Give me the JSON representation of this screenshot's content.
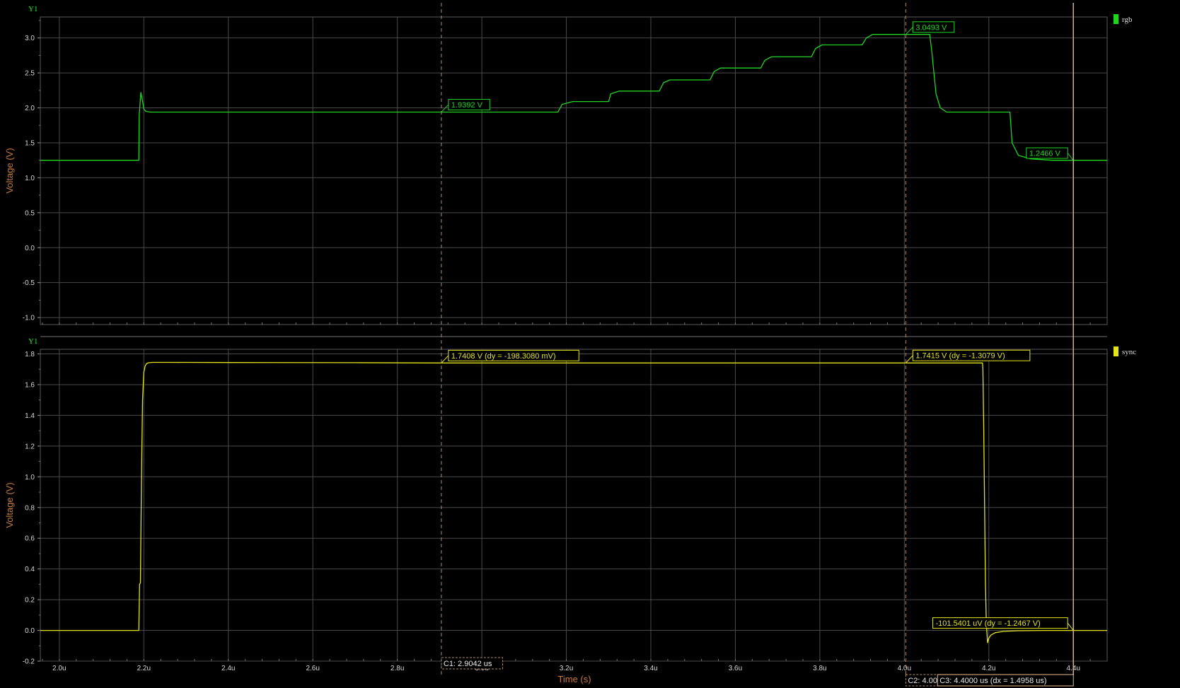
{
  "colors": {
    "background": "#000000",
    "grid": "#4a4a4a",
    "rgb_trace": "#22d422",
    "sync_trace": "#e3e31c",
    "cursor_dashed": "#b08b6a",
    "cursor_solid": "#e8b98c",
    "axis_label": "#c87a3c",
    "tag": "#27e827"
  },
  "chart_data": [
    {
      "type": "line",
      "panel_tag": "Y1",
      "ylabel": "Voltage (V)",
      "xlabel": "",
      "xlim": [
        1.955,
        4.48
      ],
      "ylim": [
        -1.1,
        3.3
      ],
      "yticks": [
        -1.0,
        -0.5,
        0.0,
        0.5,
        1.0,
        1.5,
        2.0,
        2.5,
        3.0
      ],
      "ytick_labels": [
        "-1.0",
        "-0.5",
        "0.0",
        "0.5",
        "1.0",
        "1.5",
        "2.0",
        "2.5",
        "3.0"
      ],
      "grid": true,
      "legend_position": "right",
      "series": [
        {
          "name": "rgb",
          "color": "#22d422",
          "x": [
            1.955,
            2.188,
            2.189,
            2.193,
            2.197,
            2.2,
            2.205,
            2.215,
            2.3,
            3.18,
            3.19,
            3.215,
            3.3,
            3.305,
            3.325,
            3.42,
            3.43,
            3.445,
            3.54,
            3.55,
            3.565,
            3.66,
            3.67,
            3.685,
            3.78,
            3.79,
            3.805,
            3.9,
            3.91,
            3.925,
            4.06,
            4.065,
            4.075,
            4.085,
            4.1,
            4.25,
            4.255,
            4.27,
            4.3,
            4.35,
            4.48
          ],
          "y": [
            1.25,
            1.25,
            1.9,
            2.22,
            2.1,
            1.98,
            1.95,
            1.94,
            1.94,
            1.94,
            2.05,
            2.09,
            2.09,
            2.2,
            2.24,
            2.24,
            2.36,
            2.4,
            2.4,
            2.52,
            2.57,
            2.57,
            2.68,
            2.73,
            2.73,
            2.85,
            2.9,
            2.9,
            3.0,
            3.05,
            3.05,
            2.8,
            2.2,
            2.0,
            1.94,
            1.94,
            1.5,
            1.32,
            1.27,
            1.25,
            1.25
          ]
        }
      ],
      "markers": [
        {
          "label": "1.9392 V",
          "x": 2.9042,
          "y": 1.9392
        },
        {
          "label": "3.0493 V",
          "x": 4.0034,
          "y": 3.0493
        },
        {
          "label": "1.2466 V",
          "x": 4.4,
          "y": 1.2466
        }
      ]
    },
    {
      "type": "line",
      "panel_tag": "Y1",
      "ylabel": "Voltage (V)",
      "xlabel": "Time (s)",
      "xlim": [
        1.955,
        4.48
      ],
      "ylim": [
        -0.2,
        1.83
      ],
      "xticks": [
        2.0,
        2.2,
        2.4,
        2.6,
        2.8,
        3.0,
        3.2,
        3.4,
        3.6,
        3.8,
        4.0,
        4.2,
        4.4
      ],
      "xtick_labels": [
        "2.0u",
        "2.2u",
        "2.4u",
        "2.6u",
        "2.8u",
        "3.0u",
        "3.2u",
        "3.4u",
        "3.6u",
        "3.8u",
        "4.0u",
        "4.2u",
        "4.4u"
      ],
      "yticks": [
        -0.2,
        0.0,
        0.2,
        0.4,
        0.6,
        0.8,
        1.0,
        1.2,
        1.4,
        1.6,
        1.8
      ],
      "ytick_labels": [
        "-0.2",
        "0.0",
        "0.2",
        "0.4",
        "0.6",
        "0.8",
        "1.0",
        "1.2",
        "1.4",
        "1.6",
        "1.8"
      ],
      "grid": true,
      "legend_position": "right",
      "series": [
        {
          "name": "sync",
          "color": "#e3e31c",
          "x": [
            1.955,
            2.188,
            2.19,
            2.192,
            2.193,
            2.195,
            2.197,
            2.199,
            2.2,
            2.203,
            2.206,
            2.21,
            2.22,
            2.26,
            2.4,
            2.7,
            2.9,
            3.2,
            3.6,
            4.0,
            4.185,
            4.186,
            4.188,
            4.19,
            4.192,
            4.194,
            4.197,
            4.2,
            4.205,
            4.215,
            4.235,
            4.27,
            4.33,
            4.48
          ],
          "y": [
            0.0,
            0.0,
            0.3,
            0.31,
            0.6,
            1.1,
            1.5,
            1.62,
            1.68,
            1.72,
            1.735,
            1.742,
            1.745,
            1.745,
            1.744,
            1.743,
            1.741,
            1.741,
            1.741,
            1.741,
            1.741,
            1.7,
            1.3,
            0.8,
            0.3,
            0.05,
            -0.08,
            -0.05,
            -0.03,
            -0.015,
            -0.006,
            -0.002,
            0.0,
            0.0
          ]
        }
      ],
      "markers": [
        {
          "label": "1.7408 V (dy = -198.3080 mV)",
          "x": 2.9042,
          "y": 1.7408
        },
        {
          "label": "1.7415 V (dy = -1.3079 V)",
          "x": 4.0034,
          "y": 1.7415
        },
        {
          "label": "-101.5401 uV (dy = -1.2467 V)",
          "x": 4.4,
          "y": -0.0001
        }
      ]
    }
  ],
  "cursors": [
    {
      "id": "C1",
      "x": 2.9042,
      "style": "dashed",
      "label": "C1: 2.9042 us"
    },
    {
      "id": "C2",
      "x": 4.0034,
      "style": "dashed",
      "label": "C2: 4.0034"
    },
    {
      "id": "C3",
      "x": 4.4,
      "style": "solid",
      "label": "C3: 4.4000 us (dx = 1.4958 us)"
    }
  ]
}
